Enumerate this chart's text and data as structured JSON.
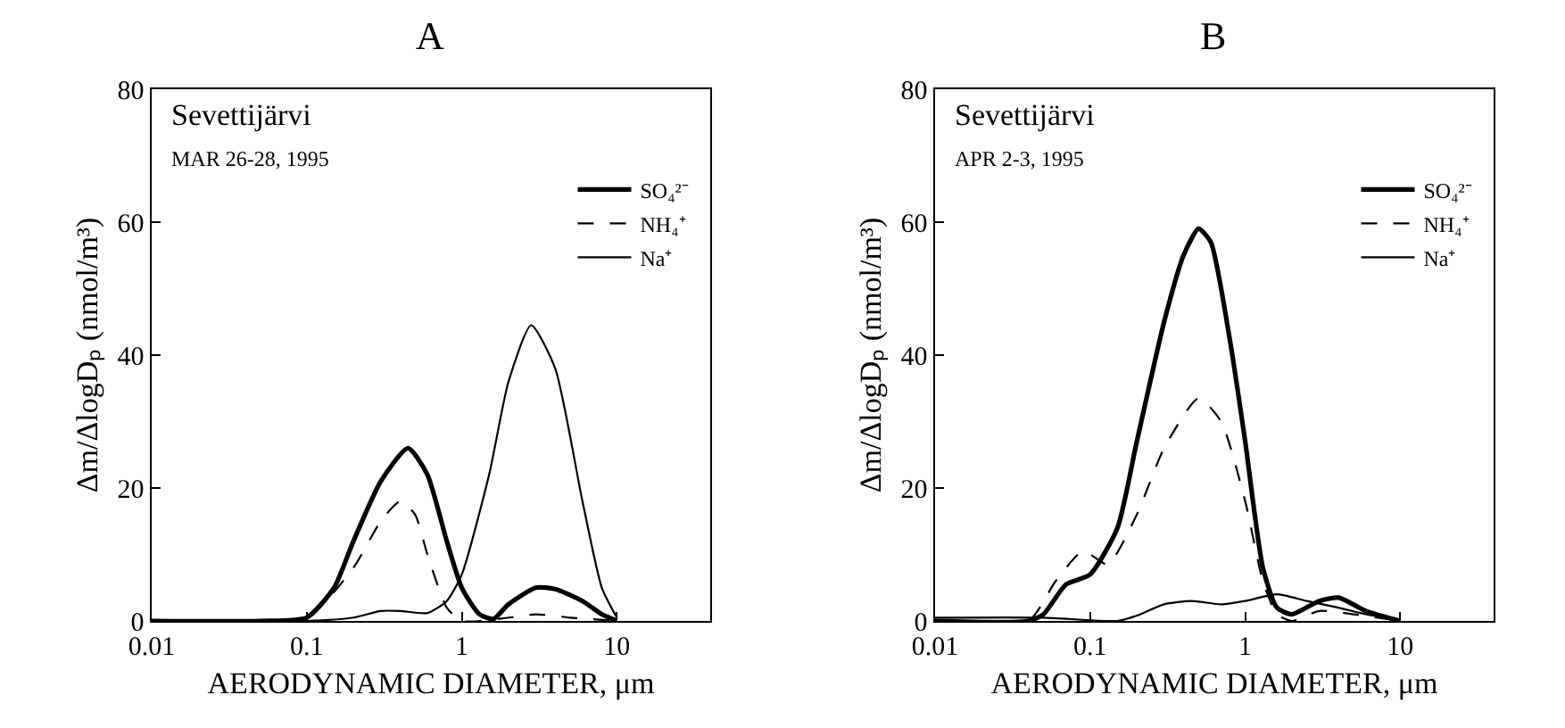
{
  "chart_data": [
    {
      "type": "line",
      "title": "A",
      "xlabel": "AERODYNAMIC DIAMETER, μm",
      "ylabel": "Δm/ΔlogDₚ (nmol/m³)",
      "annotations": [
        "Sevettijärvi",
        "MAR 26-28, 1995"
      ],
      "log": "x",
      "xlim": [
        0.01,
        40
      ],
      "xticks": [
        0.01,
        0.1,
        1,
        10
      ],
      "ylim": [
        0,
        80
      ],
      "yticks": [
        0,
        20,
        40,
        60,
        80
      ],
      "grid": false,
      "legend": "top right",
      "marker": "none",
      "series": [
        {
          "name": "SO₄²⁻",
          "color": "#000000",
          "line_style": "solid",
          "x": [
            0.01,
            0.05,
            0.1,
            0.15,
            0.2,
            0.3,
            0.45,
            0.6,
            0.8,
            1.0,
            1.3,
            1.6,
            2,
            3,
            4,
            6,
            8,
            10
          ],
          "values": [
            0,
            0,
            0.5,
            5,
            12,
            21,
            26,
            22,
            12,
            5,
            1,
            0.3,
            2.5,
            5,
            4.8,
            3,
            1,
            0
          ]
        },
        {
          "name": "NH₄⁺",
          "color": "#000000",
          "line_style": "dashed",
          "x": [
            0.01,
            0.05,
            0.1,
            0.2,
            0.3,
            0.4,
            0.5,
            0.6,
            0.8,
            1,
            2,
            3,
            5,
            10
          ],
          "values": [
            0,
            0,
            0.3,
            8,
            15,
            18,
            16,
            10,
            2,
            0,
            0.5,
            1,
            0.5,
            0
          ]
        },
        {
          "name": "Na⁺",
          "color": "#000000",
          "line_style": "solid",
          "x": [
            0.01,
            0.1,
            0.2,
            0.3,
            0.4,
            0.6,
            0.8,
            1,
            1.5,
            2,
            2.8,
            4,
            6,
            8,
            10
          ],
          "values": [
            0,
            0,
            0.5,
            1.5,
            1.5,
            1.2,
            3,
            7,
            22,
            36,
            44.5,
            38,
            18,
            5,
            0.5
          ]
        }
      ]
    },
    {
      "type": "line",
      "title": "B",
      "xlabel": "AERODYNAMIC DIAMETER, μm",
      "ylabel": "Δm/ΔlogDₚ (nmol/m³)",
      "annotations": [
        "Sevettijärvi",
        "APR 2-3, 1995"
      ],
      "log": "x",
      "xlim": [
        0.01,
        40
      ],
      "xticks": [
        0.01,
        0.1,
        1,
        10
      ],
      "ylim": [
        0,
        80
      ],
      "yticks": [
        0,
        20,
        40,
        60,
        80
      ],
      "grid": false,
      "legend": "top right",
      "marker": "none",
      "series": [
        {
          "name": "SO₄²⁻",
          "color": "#000000",
          "line_style": "solid",
          "x": [
            0.01,
            0.04,
            0.05,
            0.07,
            0.1,
            0.15,
            0.2,
            0.3,
            0.4,
            0.5,
            0.6,
            0.8,
            1.0,
            1.3,
            1.6,
            2,
            3,
            4,
            6,
            10
          ],
          "values": [
            0,
            0,
            1,
            5.5,
            7,
            14,
            27,
            45,
            55,
            59,
            57,
            42,
            27,
            8,
            2,
            1,
            3,
            3.5,
            1.5,
            0
          ]
        },
        {
          "name": "NH₄⁺",
          "color": "#000000",
          "line_style": "dashed",
          "x": [
            0.01,
            0.04,
            0.06,
            0.09,
            0.13,
            0.2,
            0.3,
            0.5,
            0.7,
            1,
            1.3,
            1.6,
            2,
            3,
            5,
            10
          ],
          "values": [
            0,
            0,
            6,
            10.5,
            8.5,
            16,
            26,
            33.5,
            30,
            18,
            6,
            1,
            0,
            1.5,
            1,
            0
          ]
        },
        {
          "name": "Na⁺",
          "color": "#000000",
          "line_style": "solid",
          "x": [
            0.01,
            0.05,
            0.15,
            0.2,
            0.3,
            0.45,
            0.7,
            1,
            1.6,
            2.5,
            4,
            6,
            10
          ],
          "values": [
            0.5,
            0.5,
            0,
            0.8,
            2.5,
            3,
            2.5,
            3,
            4,
            3,
            2,
            1,
            0
          ]
        }
      ]
    }
  ]
}
